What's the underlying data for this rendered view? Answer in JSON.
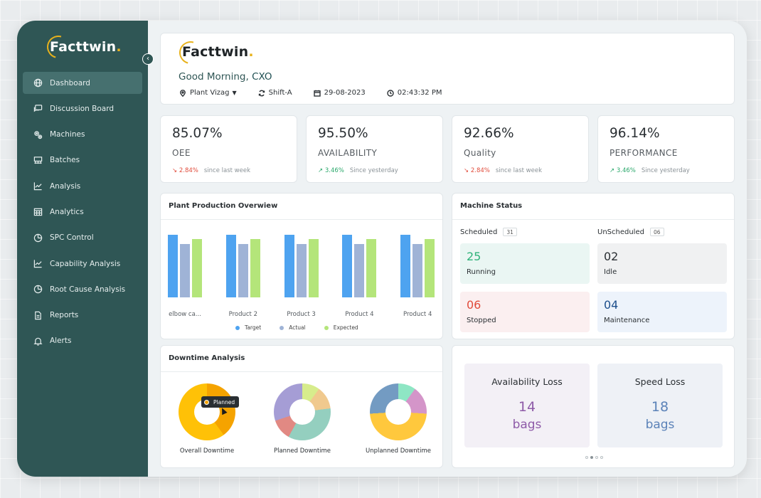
{
  "brand": {
    "name": "Facttwin",
    "dot": "."
  },
  "sidebar": {
    "items": [
      {
        "label": "Dashboard",
        "icon": "globe-icon",
        "active": true
      },
      {
        "label": "Discussion Board",
        "icon": "chat-board-icon"
      },
      {
        "label": "Machines",
        "icon": "gears-icon"
      },
      {
        "label": "Batches",
        "icon": "batches-icon"
      },
      {
        "label": "Analysis",
        "icon": "line-chart-icon"
      },
      {
        "label": "Analytics",
        "icon": "calendar-grid-icon"
      },
      {
        "label": "SPC Control",
        "icon": "pie-icon"
      },
      {
        "label": "Capability Analysis",
        "icon": "line-chart-icon"
      },
      {
        "label": "Root Cause Analysis",
        "icon": "pie-icon"
      },
      {
        "label": "Reports",
        "icon": "report-icon"
      },
      {
        "label": "Alerts",
        "icon": "bell-icon"
      }
    ]
  },
  "header": {
    "greeting_prefix": "Good Morning,",
    "greeting_name": "CXO",
    "plant": "Plant Vizag",
    "shift": "Shift-A",
    "date": "29-08-2023",
    "time": "02:43:32 PM"
  },
  "kpis": [
    {
      "value": "85.07%",
      "label": "OEE",
      "trend": "2.84%",
      "direction": "down",
      "note": "since last week"
    },
    {
      "value": "95.50%",
      "label": "AVAILABILITY",
      "trend": "3.46%",
      "direction": "up",
      "note": "Since yesterday"
    },
    {
      "value": "92.66%",
      "label": "Quality",
      "trend": "2.84%",
      "direction": "down",
      "note": "since last week"
    },
    {
      "value": "96.14%",
      "label": "PERFORMANCE",
      "trend": "3.46%",
      "direction": "up",
      "note": "Since yesterday"
    }
  ],
  "production": {
    "title": "Plant Production Overwiew",
    "legend": [
      "Target",
      "Actual",
      "Expected"
    ]
  },
  "chart_data": {
    "type": "bar",
    "categories": [
      "elbow ca...",
      "Product 2",
      "Product 3",
      "Product 4",
      "Product 4"
    ],
    "series": [
      {
        "name": "Target",
        "values": [
          92,
          92,
          92,
          92,
          92
        ],
        "color": "#4ea3f0"
      },
      {
        "name": "Actual",
        "values": [
          78,
          78,
          78,
          78,
          78
        ],
        "color": "#9fb3d6"
      },
      {
        "name": "Expected",
        "values": [
          85,
          85,
          85,
          85,
          85
        ],
        "color": "#b4e57a"
      }
    ],
    "ylim": [
      0,
      100
    ]
  },
  "machine_status": {
    "title": "Machine Status",
    "scheduled_label": "Scheduled",
    "scheduled_count": "31",
    "unscheduled_label": "UnScheduled",
    "unscheduled_count": "06",
    "tiles": [
      {
        "value": "25",
        "label": "Running",
        "color": "#2fb37a",
        "bg": "#eaf6f3"
      },
      {
        "value": "02",
        "label": "Idle",
        "color": "#2a2f33",
        "bg": "#f0f1f2"
      },
      {
        "value": "06",
        "label": "Stopped",
        "color": "#e14b3b",
        "bg": "#fbeff0"
      },
      {
        "value": "04",
        "label": "Maintenance",
        "color": "#1d4f8c",
        "bg": "#edf3fb"
      }
    ]
  },
  "downtime": {
    "title": "Downtime Analysis",
    "tooltip": "Planned",
    "charts": [
      {
        "label": "Overall Downtime"
      },
      {
        "label": "Planned Downtime"
      },
      {
        "label": "Unplanned Downtime"
      }
    ]
  },
  "loss": {
    "tiles": [
      {
        "title": "Availability Loss",
        "value": "14",
        "unit": "bags",
        "color": "#8e5ba8",
        "bg": "#f3f0f6"
      },
      {
        "title": "Speed Loss",
        "value": "18",
        "unit": "bags",
        "color": "#5b82b8",
        "bg": "#eef1f6"
      }
    ]
  }
}
